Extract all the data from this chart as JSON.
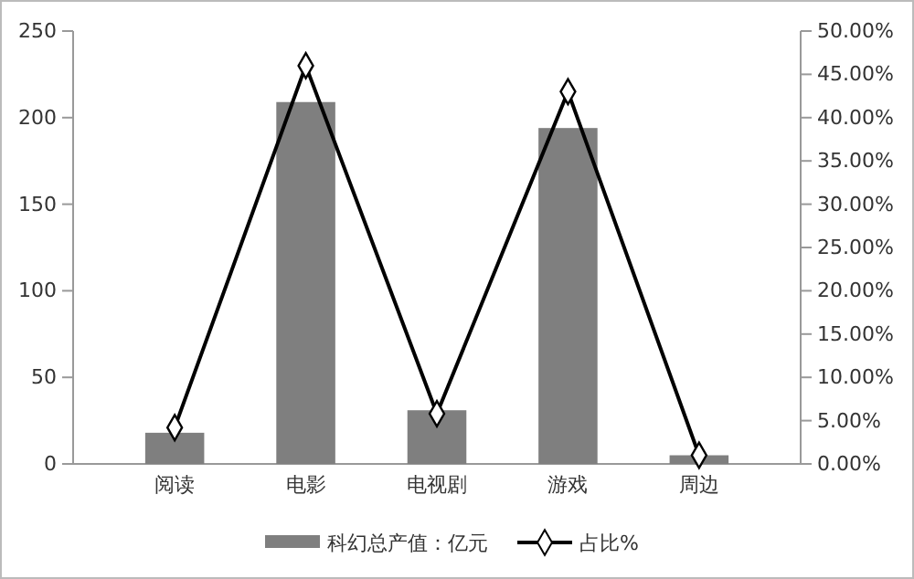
{
  "chart_data": {
    "type": "bar",
    "categories": [
      "阅读",
      "电影",
      "电视剧",
      "游戏",
      "周边"
    ],
    "series": [
      {
        "name": "科幻总产值：亿元",
        "color": "#7f7f7f",
        "values": [
          18,
          209,
          31,
          194,
          5
        ]
      },
      {
        "name": "占比%",
        "type": "line",
        "axis": "y2",
        "color": "#000000",
        "marker": "diamond",
        "values": [
          4.2,
          46,
          5.8,
          43,
          1
        ]
      }
    ],
    "ylim": [
      0,
      250
    ],
    "yticks": [
      0,
      50,
      100,
      150,
      200,
      250
    ],
    "y2lim": [
      0,
      50
    ],
    "y2ticks": [
      {
        "value": 0,
        "label": "0.00%"
      },
      {
        "value": 5,
        "label": "5.00%"
      },
      {
        "value": 10,
        "label": "10.00%"
      },
      {
        "value": 15,
        "label": "15.00%"
      },
      {
        "value": 20,
        "label": "20.00%"
      },
      {
        "value": 25,
        "label": "25.00%"
      },
      {
        "value": 30,
        "label": "30.00%"
      },
      {
        "value": 35,
        "label": "35.00%"
      },
      {
        "value": 40,
        "label": "40.00%"
      },
      {
        "value": 45,
        "label": "45.00%"
      },
      {
        "value": 50,
        "label": "50.00%"
      }
    ],
    "legend": "bottom",
    "grid": false
  }
}
